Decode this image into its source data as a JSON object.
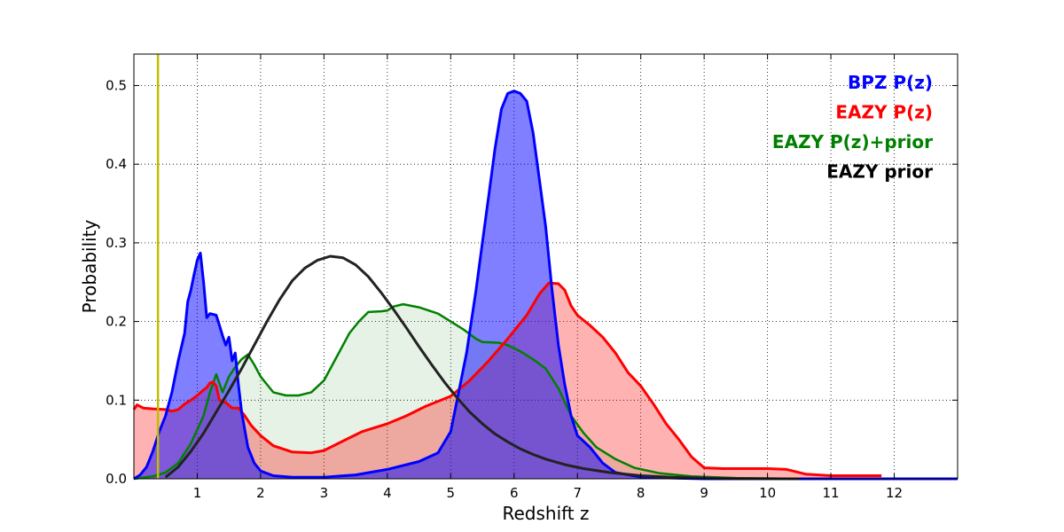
{
  "chart_data": {
    "type": "area",
    "xlabel": "Redshift z",
    "ylabel": "Probability",
    "xlim": [
      0,
      13
    ],
    "ylim": [
      0,
      0.54
    ],
    "x_ticks": [
      1,
      2,
      3,
      4,
      5,
      6,
      7,
      8,
      9,
      10,
      11,
      12
    ],
    "y_ticks": [
      0.0,
      0.1,
      0.2,
      0.3,
      0.4,
      0.5
    ],
    "grid": true,
    "legend_position": "top-right",
    "marker_line": {
      "x": 0.38,
      "color": "#bfbf00"
    },
    "legend": [
      {
        "label": "BPZ P(z)",
        "color": "#0000ff"
      },
      {
        "label": "EAZY P(z)",
        "color": "#ff0000"
      },
      {
        "label": "EAZY P(z)+prior",
        "color": "#008000"
      },
      {
        "label": "EAZY prior",
        "color": "#000000"
      }
    ],
    "series": [
      {
        "name": "EAZY P(z)+prior",
        "color": "#008000",
        "fill": "#008000",
        "fill_opacity": 0.1,
        "line_width": 2.5,
        "points": [
          [
            0,
            0
          ],
          [
            0.3,
            0.003
          ],
          [
            0.5,
            0.008
          ],
          [
            0.7,
            0.02
          ],
          [
            0.9,
            0.045
          ],
          [
            1.1,
            0.08
          ],
          [
            1.2,
            0.11
          ],
          [
            1.3,
            0.133
          ],
          [
            1.4,
            0.11
          ],
          [
            1.5,
            0.13
          ],
          [
            1.6,
            0.142
          ],
          [
            1.7,
            0.152
          ],
          [
            1.8,
            0.158
          ],
          [
            1.9,
            0.145
          ],
          [
            2.0,
            0.13
          ],
          [
            2.1,
            0.12
          ],
          [
            2.2,
            0.11
          ],
          [
            2.4,
            0.106
          ],
          [
            2.6,
            0.106
          ],
          [
            2.8,
            0.11
          ],
          [
            3.0,
            0.125
          ],
          [
            3.2,
            0.155
          ],
          [
            3.4,
            0.185
          ],
          [
            3.55,
            0.2
          ],
          [
            3.7,
            0.212
          ],
          [
            3.9,
            0.213
          ],
          [
            4.0,
            0.214
          ],
          [
            4.1,
            0.219
          ],
          [
            4.25,
            0.222
          ],
          [
            4.5,
            0.218
          ],
          [
            4.8,
            0.21
          ],
          [
            5.0,
            0.2
          ],
          [
            5.2,
            0.19
          ],
          [
            5.4,
            0.178
          ],
          [
            5.5,
            0.174
          ],
          [
            5.75,
            0.173
          ],
          [
            5.9,
            0.17
          ],
          [
            6.1,
            0.162
          ],
          [
            6.3,
            0.152
          ],
          [
            6.5,
            0.14
          ],
          [
            6.7,
            0.115
          ],
          [
            6.9,
            0.08
          ],
          [
            7.1,
            0.058
          ],
          [
            7.3,
            0.04
          ],
          [
            7.6,
            0.025
          ],
          [
            7.9,
            0.014
          ],
          [
            8.3,
            0.007
          ],
          [
            8.8,
            0.003
          ],
          [
            9.5,
            0.001
          ],
          [
            10.5,
            0
          ],
          [
            12,
            0
          ],
          [
            13,
            0
          ]
        ]
      },
      {
        "name": "EAZY P(z)",
        "color": "#ff0000",
        "fill": "#ff0000",
        "fill_opacity": 0.3,
        "line_width": 3,
        "points": [
          [
            0,
            0.088
          ],
          [
            0.05,
            0.094
          ],
          [
            0.15,
            0.09
          ],
          [
            0.3,
            0.089
          ],
          [
            0.5,
            0.088
          ],
          [
            0.6,
            0.086
          ],
          [
            0.7,
            0.088
          ],
          [
            0.8,
            0.095
          ],
          [
            0.9,
            0.1
          ],
          [
            1.0,
            0.106
          ],
          [
            1.1,
            0.113
          ],
          [
            1.15,
            0.116
          ],
          [
            1.2,
            0.122
          ],
          [
            1.25,
            0.123
          ],
          [
            1.3,
            0.118
          ],
          [
            1.35,
            0.1
          ],
          [
            1.45,
            0.097
          ],
          [
            1.55,
            0.09
          ],
          [
            1.65,
            0.09
          ],
          [
            1.75,
            0.08
          ],
          [
            1.85,
            0.068
          ],
          [
            2.0,
            0.055
          ],
          [
            2.2,
            0.042
          ],
          [
            2.5,
            0.034
          ],
          [
            2.8,
            0.033
          ],
          [
            3.0,
            0.036
          ],
          [
            3.2,
            0.044
          ],
          [
            3.4,
            0.052
          ],
          [
            3.6,
            0.06
          ],
          [
            3.8,
            0.065
          ],
          [
            4.0,
            0.07
          ],
          [
            4.3,
            0.08
          ],
          [
            4.6,
            0.092
          ],
          [
            5.0,
            0.105
          ],
          [
            5.3,
            0.125
          ],
          [
            5.6,
            0.15
          ],
          [
            5.9,
            0.178
          ],
          [
            6.2,
            0.208
          ],
          [
            6.4,
            0.235
          ],
          [
            6.55,
            0.249
          ],
          [
            6.7,
            0.248
          ],
          [
            6.8,
            0.24
          ],
          [
            6.9,
            0.22
          ],
          [
            7.0,
            0.208
          ],
          [
            7.2,
            0.195
          ],
          [
            7.4,
            0.18
          ],
          [
            7.6,
            0.16
          ],
          [
            7.8,
            0.135
          ],
          [
            8.0,
            0.118
          ],
          [
            8.2,
            0.095
          ],
          [
            8.4,
            0.07
          ],
          [
            8.6,
            0.05
          ],
          [
            8.8,
            0.028
          ],
          [
            9.0,
            0.014
          ],
          [
            9.3,
            0.013
          ],
          [
            9.7,
            0.013
          ],
          [
            10.0,
            0.013
          ],
          [
            10.3,
            0.012
          ],
          [
            10.6,
            0.006
          ],
          [
            11.0,
            0.004
          ],
          [
            11.8,
            0.004
          ]
        ]
      },
      {
        "name": "BPZ P(z)",
        "color": "#0000ff",
        "fill": "#0000ff",
        "fill_opacity": 0.5,
        "line_width": 3,
        "points": [
          [
            0,
            0
          ],
          [
            0.1,
            0.005
          ],
          [
            0.2,
            0.015
          ],
          [
            0.3,
            0.035
          ],
          [
            0.4,
            0.06
          ],
          [
            0.5,
            0.08
          ],
          [
            0.6,
            0.11
          ],
          [
            0.7,
            0.15
          ],
          [
            0.8,
            0.185
          ],
          [
            0.85,
            0.225
          ],
          [
            0.9,
            0.24
          ],
          [
            0.95,
            0.26
          ],
          [
            1.0,
            0.278
          ],
          [
            1.05,
            0.287
          ],
          [
            1.1,
            0.25
          ],
          [
            1.15,
            0.205
          ],
          [
            1.2,
            0.21
          ],
          [
            1.3,
            0.208
          ],
          [
            1.35,
            0.195
          ],
          [
            1.4,
            0.182
          ],
          [
            1.45,
            0.17
          ],
          [
            1.5,
            0.18
          ],
          [
            1.55,
            0.15
          ],
          [
            1.6,
            0.16
          ],
          [
            1.65,
            0.12
          ],
          [
            1.7,
            0.085
          ],
          [
            1.8,
            0.04
          ],
          [
            1.9,
            0.02
          ],
          [
            2.0,
            0.01
          ],
          [
            2.2,
            0.004
          ],
          [
            2.5,
            0.002
          ],
          [
            3.0,
            0.002
          ],
          [
            3.5,
            0.005
          ],
          [
            4.0,
            0.012
          ],
          [
            4.5,
            0.022
          ],
          [
            4.8,
            0.033
          ],
          [
            5.0,
            0.06
          ],
          [
            5.1,
            0.1
          ],
          [
            5.25,
            0.16
          ],
          [
            5.4,
            0.24
          ],
          [
            5.5,
            0.3
          ],
          [
            5.6,
            0.36
          ],
          [
            5.7,
            0.42
          ],
          [
            5.8,
            0.47
          ],
          [
            5.9,
            0.49
          ],
          [
            6.0,
            0.493
          ],
          [
            6.1,
            0.49
          ],
          [
            6.2,
            0.48
          ],
          [
            6.3,
            0.44
          ],
          [
            6.4,
            0.38
          ],
          [
            6.5,
            0.32
          ],
          [
            6.6,
            0.24
          ],
          [
            6.7,
            0.17
          ],
          [
            6.8,
            0.12
          ],
          [
            6.9,
            0.08
          ],
          [
            7.0,
            0.055
          ],
          [
            7.2,
            0.04
          ],
          [
            7.4,
            0.02
          ],
          [
            7.6,
            0.008
          ],
          [
            8.0,
            0.002
          ],
          [
            9.0,
            0
          ],
          [
            13,
            0
          ]
        ]
      },
      {
        "name": "EAZY prior",
        "color": "#222222",
        "fill": "none",
        "fill_opacity": 0,
        "line_width": 3,
        "points": [
          [
            0.5,
            0.002
          ],
          [
            0.7,
            0.015
          ],
          [
            0.9,
            0.035
          ],
          [
            1.1,
            0.058
          ],
          [
            1.3,
            0.085
          ],
          [
            1.5,
            0.112
          ],
          [
            1.7,
            0.14
          ],
          [
            1.9,
            0.17
          ],
          [
            2.1,
            0.2
          ],
          [
            2.3,
            0.228
          ],
          [
            2.5,
            0.252
          ],
          [
            2.7,
            0.268
          ],
          [
            2.9,
            0.278
          ],
          [
            3.1,
            0.283
          ],
          [
            3.3,
            0.281
          ],
          [
            3.5,
            0.272
          ],
          [
            3.7,
            0.257
          ],
          [
            3.9,
            0.237
          ],
          [
            4.1,
            0.215
          ],
          [
            4.3,
            0.192
          ],
          [
            4.5,
            0.168
          ],
          [
            4.7,
            0.145
          ],
          [
            4.9,
            0.123
          ],
          [
            5.1,
            0.103
          ],
          [
            5.3,
            0.085
          ],
          [
            5.5,
            0.07
          ],
          [
            5.7,
            0.057
          ],
          [
            5.9,
            0.047
          ],
          [
            6.1,
            0.038
          ],
          [
            6.3,
            0.031
          ],
          [
            6.5,
            0.025
          ],
          [
            6.8,
            0.018
          ],
          [
            7.1,
            0.013
          ],
          [
            7.5,
            0.008
          ],
          [
            8.0,
            0.004
          ],
          [
            8.5,
            0.002
          ],
          [
            9.0,
            0.001
          ],
          [
            9.5,
            0.0003
          ],
          [
            10.5,
            0
          ]
        ]
      }
    ]
  }
}
